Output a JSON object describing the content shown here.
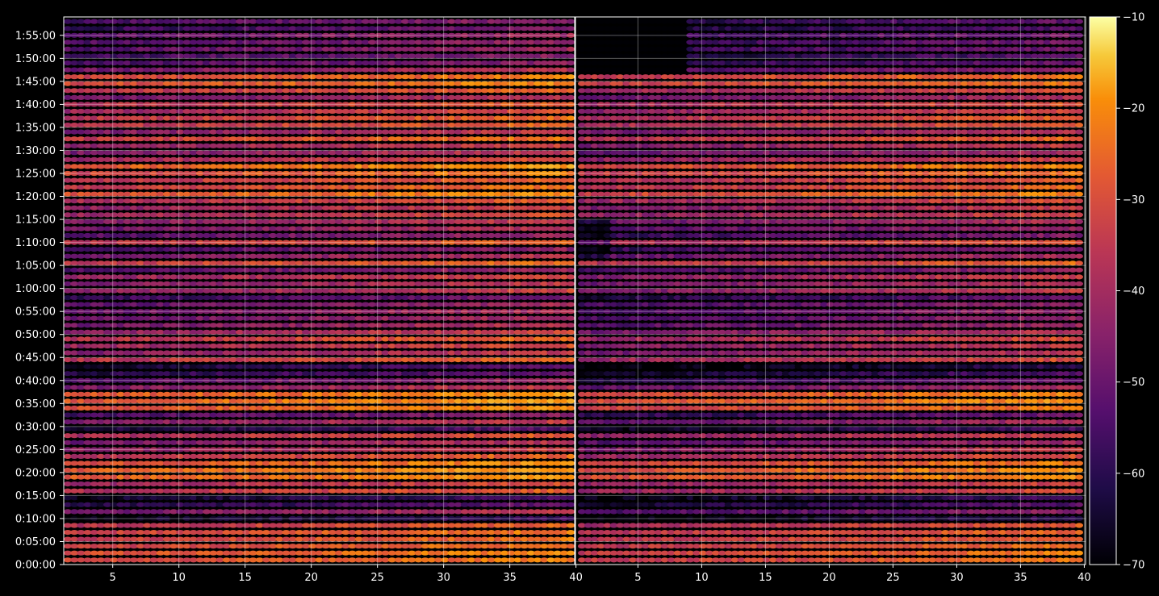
{
  "chart_data": {
    "type": "heatmap",
    "title": "",
    "xlabel": "",
    "ylabel": "",
    "colormap": "inferno",
    "background_color": "#000000",
    "grid": true,
    "colorbar_position": "right",
    "panels": [
      {
        "name": "",
        "xlim": [
          1.3,
          39.9
        ],
        "x_ticks": [
          {
            "value": 5,
            "label": "5"
          },
          {
            "value": 10,
            "label": "10"
          },
          {
            "value": 15,
            "label": "15"
          },
          {
            "value": 20,
            "label": "20"
          },
          {
            "value": 25,
            "label": "25"
          },
          {
            "value": 30,
            "label": "30"
          },
          {
            "value": 35,
            "label": "35"
          },
          {
            "value": 40,
            "label": "40"
          }
        ]
      },
      {
        "name": "",
        "xlim": [
          0.1,
          40.1
        ],
        "x_ticks": [
          {
            "value": 5,
            "label": "5"
          },
          {
            "value": 10,
            "label": "10"
          },
          {
            "value": 15,
            "label": "15"
          },
          {
            "value": 20,
            "label": "20"
          },
          {
            "value": 25,
            "label": "25"
          },
          {
            "value": 30,
            "label": "30"
          },
          {
            "value": 35,
            "label": "35"
          },
          {
            "value": 40,
            "label": "40"
          }
        ]
      }
    ],
    "y_axis": {
      "ylim_seconds": [
        0,
        7140
      ],
      "ticks": [
        {
          "seconds": 0,
          "label": "0:00:00"
        },
        {
          "seconds": 300,
          "label": "0:05:00"
        },
        {
          "seconds": 600,
          "label": "0:10:00"
        },
        {
          "seconds": 900,
          "label": "0:15:00"
        },
        {
          "seconds": 1200,
          "label": "0:20:00"
        },
        {
          "seconds": 1500,
          "label": "0:25:00"
        },
        {
          "seconds": 1800,
          "label": "0:30:00"
        },
        {
          "seconds": 2100,
          "label": "0:35:00"
        },
        {
          "seconds": 2400,
          "label": "0:40:00"
        },
        {
          "seconds": 2700,
          "label": "0:45:00"
        },
        {
          "seconds": 3000,
          "label": "0:50:00"
        },
        {
          "seconds": 3300,
          "label": "0:55:00"
        },
        {
          "seconds": 3600,
          "label": "1:00:00"
        },
        {
          "seconds": 3900,
          "label": "1:05:00"
        },
        {
          "seconds": 4200,
          "label": "1:10:00"
        },
        {
          "seconds": 4500,
          "label": "1:15:00"
        },
        {
          "seconds": 4800,
          "label": "1:20:00"
        },
        {
          "seconds": 5100,
          "label": "1:25:00"
        },
        {
          "seconds": 5400,
          "label": "1:30:00"
        },
        {
          "seconds": 5700,
          "label": "1:35:00"
        },
        {
          "seconds": 6000,
          "label": "1:40:00"
        },
        {
          "seconds": 6300,
          "label": "1:45:00"
        },
        {
          "seconds": 6600,
          "label": "1:50:00"
        },
        {
          "seconds": 6900,
          "label": "1:55:00"
        }
      ]
    },
    "colorbar": {
      "vmin": -70,
      "vmax": -10,
      "ticks": [
        {
          "value": -10,
          "label": "−10"
        },
        {
          "value": -20,
          "label": "−20"
        },
        {
          "value": -30,
          "label": "−30"
        },
        {
          "value": -40,
          "label": "−40"
        },
        {
          "value": -50,
          "label": "−50"
        },
        {
          "value": -60,
          "label": "−60"
        },
        {
          "value": -70,
          "label": "−70"
        }
      ]
    },
    "row_profile": {
      "row_times_seconds": [
        60,
        150,
        240,
        330,
        420,
        510,
        600,
        690,
        780,
        870,
        960,
        1050,
        1140,
        1230,
        1320,
        1410,
        1500,
        1590,
        1680,
        1770,
        1860,
        1950,
        2040,
        2130,
        2220,
        2310,
        2400,
        2490,
        2580,
        2670,
        2760,
        2850,
        2940,
        3030,
        3120,
        3210,
        3300,
        3390,
        3480,
        3570,
        3660,
        3750,
        3840,
        3930,
        4020,
        4110,
        4200,
        4290,
        4380,
        4470,
        4560,
        4650,
        4740,
        4830,
        4920,
        5010,
        5100,
        5190,
        5280,
        5370,
        5460,
        5550,
        5640,
        5730,
        5820,
        5910,
        6000,
        6090,
        6180,
        6270,
        6360,
        6450,
        6540,
        6630,
        6720,
        6810,
        6900,
        6990,
        7080
      ],
      "panel_1_level": [
        -32,
        -31,
        -33,
        -34,
        -33,
        -36,
        -64,
        -46,
        -58,
        -62,
        -37,
        -40,
        -28,
        -28,
        -30,
        -36,
        -42,
        -46,
        -38,
        -60,
        -44,
        -52,
        -30,
        -28,
        -29,
        -44,
        -50,
        -58,
        -60,
        -36,
        -44,
        -40,
        -36,
        -42,
        -46,
        -48,
        -47,
        -49,
        -55,
        -42,
        -44,
        -41,
        -50,
        -34,
        -46,
        -52,
        -36,
        -50,
        -46,
        -44,
        -40,
        -42,
        -38,
        -30,
        -34,
        -36,
        -32,
        -28,
        -40,
        -45,
        -42,
        -34,
        -44,
        -36,
        -35,
        -40,
        -37,
        -46,
        -36,
        -31,
        -32,
        -46,
        -52,
        -53,
        -50,
        -51,
        -49,
        -55,
        -52
      ],
      "panel_2_level": [
        -34,
        -33,
        -35,
        -36,
        -36,
        -38,
        -66,
        -52,
        -60,
        -64,
        -40,
        -42,
        -30,
        -30,
        -33,
        -40,
        -44,
        -50,
        -42,
        -62,
        -48,
        -56,
        -33,
        -30,
        -31,
        -48,
        -56,
        -62,
        -66,
        -40,
        -46,
        -44,
        -40,
        -46,
        -50,
        -52,
        -51,
        -52,
        -58,
        -44,
        -46,
        -43,
        -52,
        -36,
        -48,
        -54,
        -38,
        -54,
        -50,
        -47,
        -42,
        -44,
        -40,
        -32,
        -36,
        -38,
        -34,
        -31,
        -42,
        -48,
        -44,
        -36,
        -46,
        -38,
        -37,
        -42,
        -39,
        -48,
        -40,
        -33,
        -34,
        -52,
        -58,
        -60,
        -56,
        -56,
        -55,
        -60,
        -58
      ],
      "x_trend_db_per_unit": 0.28
    }
  }
}
